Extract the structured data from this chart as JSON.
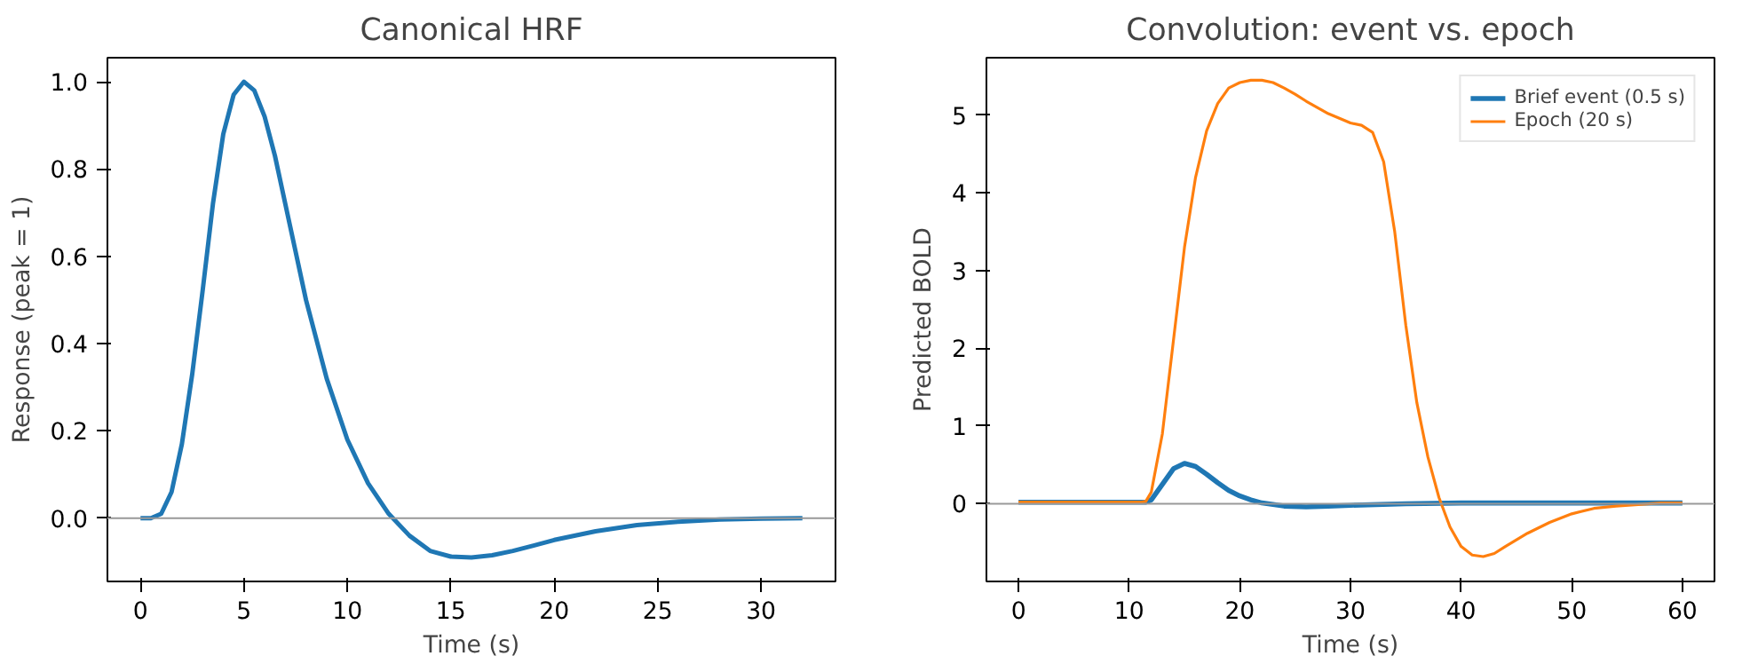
{
  "chart_data": [
    {
      "type": "line",
      "title": "Canonical HRF",
      "xlabel": "Time (s)",
      "ylabel": "Response (peak = 1)",
      "xlim": [
        -1.6,
        33.6
      ],
      "ylim": [
        -0.145,
        1.055
      ],
      "xticks": [
        0,
        5,
        10,
        15,
        20,
        25,
        30
      ],
      "yticks": [
        {
          "value": 0,
          "label": "0.0"
        },
        {
          "value": 0.2,
          "label": "0.2"
        },
        {
          "value": 0.4,
          "label": "0.4"
        },
        {
          "value": 0.6,
          "label": "0.6"
        },
        {
          "value": 0.8,
          "label": "0.8"
        },
        {
          "value": 1,
          "label": "1.0"
        }
      ],
      "grid": false,
      "legend": false,
      "ref_lines": [
        {
          "axis": "y",
          "value": 0,
          "color": "#999999"
        }
      ],
      "series": [
        {
          "color": "#1f77b4",
          "x": [
            0,
            0.5,
            1,
            1.5,
            2,
            2.5,
            3,
            3.5,
            4,
            4.5,
            5,
            5.5,
            6,
            6.5,
            7,
            7.5,
            8,
            9,
            10,
            11,
            12,
            13,
            14,
            15,
            16,
            17,
            18,
            19,
            20,
            22,
            24,
            26,
            28,
            30,
            32
          ],
          "values": [
            0,
            0,
            0.01,
            0.06,
            0.17,
            0.33,
            0.52,
            0.72,
            0.88,
            0.97,
            1.0,
            0.98,
            0.92,
            0.83,
            0.72,
            0.61,
            0.5,
            0.32,
            0.18,
            0.08,
            0.01,
            -0.04,
            -0.075,
            -0.088,
            -0.09,
            -0.085,
            -0.075,
            -0.063,
            -0.05,
            -0.03,
            -0.016,
            -0.008,
            -0.003,
            -0.001,
            0
          ]
        }
      ]
    },
    {
      "type": "line",
      "title": "Convolution: event vs. epoch",
      "xlabel": "Time (s)",
      "ylabel": "Predicted BOLD",
      "xlim": [
        -2.9,
        62.9
      ],
      "ylim": [
        -1.0,
        5.74
      ],
      "xticks": [
        0,
        10,
        20,
        30,
        40,
        50,
        60
      ],
      "yticks": [
        0,
        1,
        2,
        3,
        4,
        5
      ],
      "grid": false,
      "legend": "top right",
      "ref_lines": [
        {
          "axis": "y",
          "value": 0,
          "color": "#999999"
        }
      ],
      "series": [
        {
          "name": "Brief event (0.5 s)",
          "color": "#1f77b4",
          "x": [
            0,
            11.5,
            12,
            13,
            14,
            15,
            16,
            17,
            18,
            19,
            20,
            21,
            22,
            24,
            26,
            28,
            30,
            35,
            40,
            60
          ],
          "values": [
            0.02,
            0.02,
            0.05,
            0.25,
            0.45,
            0.52,
            0.48,
            0.38,
            0.27,
            0.17,
            0.1,
            0.05,
            0.01,
            -0.03,
            -0.04,
            -0.03,
            -0.02,
            0.0,
            0.01,
            0.01
          ]
        },
        {
          "name": "Epoch (20 s)",
          "color": "#ff7f0e",
          "x": [
            0,
            11,
            11.5,
            12,
            13,
            14,
            15,
            16,
            17,
            18,
            19,
            20,
            21,
            22,
            23,
            24,
            25,
            26,
            27,
            28,
            29,
            30,
            31,
            32,
            33,
            34,
            35,
            36,
            37,
            38,
            39,
            40,
            41,
            42,
            43,
            44,
            46,
            48,
            50,
            52,
            54,
            56,
            58,
            60
          ],
          "values": [
            0.02,
            0.02,
            0.03,
            0.15,
            0.9,
            2.1,
            3.3,
            4.2,
            4.8,
            5.15,
            5.35,
            5.42,
            5.45,
            5.45,
            5.42,
            5.35,
            5.27,
            5.18,
            5.1,
            5.02,
            4.96,
            4.9,
            4.87,
            4.78,
            4.4,
            3.5,
            2.3,
            1.3,
            0.6,
            0.08,
            -0.3,
            -0.55,
            -0.66,
            -0.68,
            -0.64,
            -0.55,
            -0.38,
            -0.24,
            -0.13,
            -0.06,
            -0.03,
            -0.01,
            0.01,
            0.01
          ]
        }
      ]
    }
  ]
}
